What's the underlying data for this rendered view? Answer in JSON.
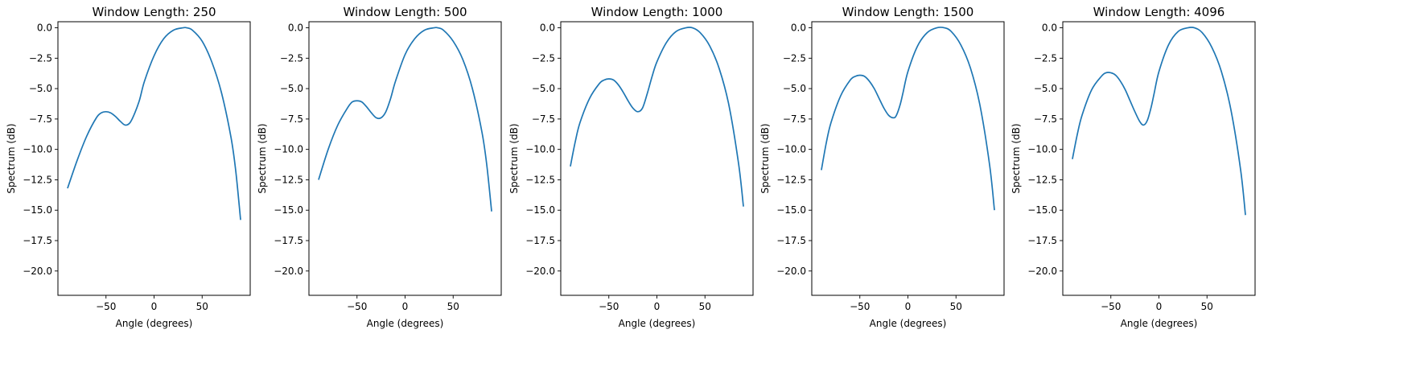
{
  "figure": {
    "background": "#ffffff",
    "line_color": "#1f77b4"
  },
  "chart_data": [
    {
      "type": "line",
      "title": "Window Length: 250",
      "xlabel": "Angle (degrees)",
      "ylabel": "Spectrum (dB)",
      "xlim": [
        -100,
        100
      ],
      "ylim": [
        -22,
        0.5
      ],
      "xticks": [
        -50,
        0,
        50
      ],
      "xtick_labels": [
        "−50",
        "0",
        "50"
      ],
      "yticks": [
        0,
        -2.5,
        -5,
        -7.5,
        -10,
        -12.5,
        -15,
        -17.5,
        -20
      ],
      "ytick_labels": [
        "0.0",
        "−2.5",
        "−5.0",
        "−7.5",
        "−10.0",
        "−12.5",
        "−15.0",
        "−17.5",
        "−20.0"
      ],
      "grid": false,
      "series": [
        {
          "x": [
            -90,
            -80,
            -70,
            -60,
            -55,
            -50,
            -45,
            -40,
            -35,
            -30,
            -25,
            -20,
            -15,
            -10,
            0,
            10,
            20,
            30,
            34,
            40,
            50,
            60,
            70,
            80,
            85,
            90
          ],
          "y": [
            -13.2,
            -10.9,
            -8.9,
            -7.4,
            -7.0,
            -6.9,
            -7.0,
            -7.3,
            -7.7,
            -8.0,
            -7.8,
            -7.0,
            -5.9,
            -4.4,
            -2.3,
            -0.9,
            -0.2,
            0.0,
            0.0,
            -0.2,
            -1.1,
            -2.8,
            -5.3,
            -9.0,
            -11.8,
            -15.8
          ]
        }
      ]
    },
    {
      "type": "line",
      "title": "Window Length: 500",
      "xlabel": "Angle (degrees)",
      "ylabel": "Spectrum (dB)",
      "xlim": [
        -100,
        100
      ],
      "ylim": [
        -22,
        0.5
      ],
      "xticks": [
        -50,
        0,
        50
      ],
      "xtick_labels": [
        "−50",
        "0",
        "50"
      ],
      "yticks": [
        0,
        -2.5,
        -5,
        -7.5,
        -10,
        -12.5,
        -15,
        -17.5,
        -20
      ],
      "ytick_labels": [
        "0.0",
        "−2.5",
        "−5.0",
        "−7.5",
        "−10.0",
        "−12.5",
        "−15.0",
        "−17.5",
        "−20.0"
      ],
      "grid": false,
      "series": [
        {
          "x": [
            -90,
            -80,
            -70,
            -60,
            -55,
            -50,
            -45,
            -40,
            -35,
            -30,
            -25,
            -20,
            -15,
            -10,
            0,
            10,
            20,
            30,
            34,
            40,
            50,
            60,
            70,
            80,
            85,
            90
          ],
          "y": [
            -12.5,
            -10.0,
            -8.0,
            -6.6,
            -6.1,
            -6.0,
            -6.1,
            -6.5,
            -7.0,
            -7.4,
            -7.4,
            -6.9,
            -5.8,
            -4.4,
            -2.2,
            -0.9,
            -0.2,
            0.0,
            0.0,
            -0.2,
            -1.1,
            -2.6,
            -5.0,
            -8.6,
            -11.3,
            -15.1
          ]
        }
      ]
    },
    {
      "type": "line",
      "title": "Window Length: 1000",
      "xlabel": "Angle (degrees)",
      "ylabel": "Spectrum (dB)",
      "xlim": [
        -100,
        100
      ],
      "ylim": [
        -22,
        0.5
      ],
      "xticks": [
        -50,
        0,
        50
      ],
      "xtick_labels": [
        "−50",
        "0",
        "50"
      ],
      "yticks": [
        0,
        -2.5,
        -5,
        -7.5,
        -10,
        -12.5,
        -15,
        -17.5,
        -20
      ],
      "ytick_labels": [
        "0.0",
        "−2.5",
        "−5.0",
        "−7.5",
        "−10.0",
        "−12.5",
        "−15.0",
        "−17.5",
        "−20.0"
      ],
      "grid": false,
      "series": [
        {
          "x": [
            -90,
            -85,
            -80,
            -70,
            -60,
            -55,
            -50,
            -45,
            -40,
            -35,
            -30,
            -25,
            -20,
            -15,
            -10,
            -5,
            0,
            10,
            20,
            30,
            37,
            45,
            55,
            65,
            75,
            85,
            90
          ],
          "y": [
            -11.4,
            -9.4,
            -7.8,
            -5.8,
            -4.6,
            -4.3,
            -4.2,
            -4.3,
            -4.7,
            -5.3,
            -6.0,
            -6.6,
            -6.9,
            -6.6,
            -5.4,
            -4.0,
            -2.8,
            -1.2,
            -0.3,
            0.0,
            0.0,
            -0.4,
            -1.5,
            -3.4,
            -6.4,
            -11.2,
            -14.7
          ]
        }
      ]
    },
    {
      "type": "line",
      "title": "Window Length: 1500",
      "xlabel": "Angle (degrees)",
      "ylabel": "Spectrum (dB)",
      "xlim": [
        -100,
        100
      ],
      "ylim": [
        -22,
        0.5
      ],
      "xticks": [
        -50,
        0,
        50
      ],
      "xtick_labels": [
        "−50",
        "0",
        "50"
      ],
      "yticks": [
        0,
        -2.5,
        -5,
        -7.5,
        -10,
        -12.5,
        -15,
        -17.5,
        -20
      ],
      "ytick_labels": [
        "0.0",
        "−2.5",
        "−5.0",
        "−7.5",
        "−10.0",
        "−12.5",
        "−15.0",
        "−17.5",
        "−20.0"
      ],
      "grid": false,
      "series": [
        {
          "x": [
            -90,
            -85,
            -80,
            -70,
            -60,
            -55,
            -50,
            -45,
            -40,
            -35,
            -30,
            -25,
            -20,
            -15,
            -12,
            -8,
            -5,
            0,
            10,
            20,
            30,
            38,
            45,
            55,
            65,
            75,
            85,
            90
          ],
          "y": [
            -11.7,
            -9.5,
            -7.8,
            -5.6,
            -4.3,
            -4.0,
            -3.9,
            -4.0,
            -4.4,
            -5.0,
            -5.8,
            -6.6,
            -7.2,
            -7.4,
            -7.2,
            -6.3,
            -5.3,
            -3.6,
            -1.5,
            -0.4,
            0.0,
            0.0,
            -0.3,
            -1.4,
            -3.3,
            -6.4,
            -11.3,
            -15.0
          ]
        }
      ]
    },
    {
      "type": "line",
      "title": "Window Length: 4096",
      "xlabel": "Angle (degrees)",
      "ylabel": "Spectrum (dB)",
      "xlim": [
        -100,
        100
      ],
      "ylim": [
        -22,
        0.5
      ],
      "xticks": [
        -50,
        0,
        50
      ],
      "xtick_labels": [
        "−50",
        "0",
        "50"
      ],
      "yticks": [
        0,
        -2.5,
        -5,
        -7.5,
        -10,
        -12.5,
        -15,
        -17.5,
        -20
      ],
      "ytick_labels": [
        "0.0",
        "−2.5",
        "−5.0",
        "−7.5",
        "−10.0",
        "−12.5",
        "−15.0",
        "−17.5",
        "−20.0"
      ],
      "grid": false,
      "series": [
        {
          "x": [
            -90,
            -85,
            -80,
            -70,
            -60,
            -55,
            -50,
            -45,
            -40,
            -35,
            -30,
            -25,
            -20,
            -16,
            -12,
            -8,
            -5,
            0,
            10,
            20,
            30,
            37,
            45,
            55,
            65,
            75,
            85,
            90
          ],
          "y": [
            -10.8,
            -8.8,
            -7.2,
            -5.1,
            -4.0,
            -3.7,
            -3.7,
            -3.9,
            -4.4,
            -5.1,
            -6.0,
            -6.9,
            -7.7,
            -8.0,
            -7.6,
            -6.5,
            -5.4,
            -3.6,
            -1.4,
            -0.3,
            0.0,
            0.0,
            -0.4,
            -1.6,
            -3.6,
            -6.8,
            -11.7,
            -15.4
          ]
        }
      ]
    }
  ]
}
